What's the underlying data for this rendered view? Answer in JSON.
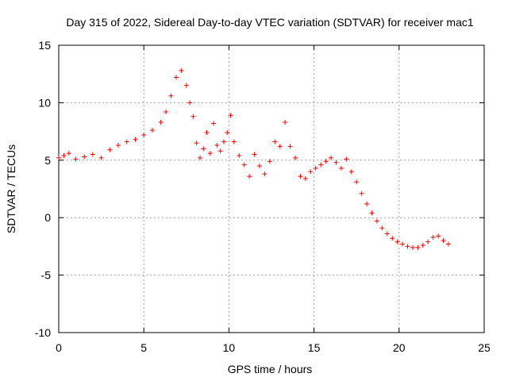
{
  "chart_data": {
    "type": "scatter",
    "title": "Day 315 of 2022, Sidereal Day-to-day VTEC variation (SDTVAR) for receiver mac1",
    "xlabel": "GPS time / hours",
    "ylabel": "SDTVAR / TECUs",
    "xlim": [
      0,
      25
    ],
    "ylim": [
      -10,
      15
    ],
    "xticks": [
      0,
      5,
      10,
      15,
      20,
      25
    ],
    "yticks": [
      -10,
      -5,
      0,
      5,
      10,
      15
    ],
    "xtick_labels": [
      "0",
      "5",
      "10",
      "15",
      "20",
      "25"
    ],
    "ytick_labels": [
      "-10",
      "-5",
      "0",
      "5",
      "10",
      "15"
    ],
    "grid": true,
    "marker": "+",
    "color": "#ff0000",
    "series": [
      {
        "name": "SDTVAR",
        "x": [
          0.0,
          0.3,
          0.6,
          1.0,
          1.5,
          2.0,
          2.5,
          3.0,
          3.5,
          4.0,
          4.5,
          5.0,
          5.5,
          6.0,
          6.3,
          6.6,
          6.9,
          7.2,
          7.5,
          7.7,
          7.9,
          8.1,
          8.3,
          8.5,
          8.7,
          8.9,
          9.1,
          9.3,
          9.5,
          9.7,
          9.9,
          10.1,
          10.3,
          10.6,
          10.9,
          11.2,
          11.5,
          11.8,
          12.1,
          12.4,
          12.7,
          13.0,
          13.3,
          13.6,
          13.9,
          14.2,
          14.5,
          14.8,
          15.1,
          15.4,
          15.7,
          16.0,
          16.3,
          16.6,
          16.9,
          17.2,
          17.5,
          17.8,
          18.1,
          18.4,
          18.7,
          19.0,
          19.3,
          19.6,
          19.9,
          20.2,
          20.5,
          20.8,
          21.1,
          21.4,
          21.7,
          22.0,
          22.3,
          22.6,
          22.9
        ],
        "y": [
          5.2,
          5.4,
          5.6,
          5.1,
          5.3,
          5.5,
          5.2,
          5.9,
          6.3,
          6.6,
          6.8,
          7.2,
          7.6,
          8.3,
          9.2,
          10.6,
          12.2,
          12.8,
          11.5,
          10.0,
          8.8,
          6.5,
          5.2,
          6.0,
          7.4,
          5.6,
          8.2,
          6.3,
          5.8,
          6.6,
          7.4,
          8.9,
          6.6,
          5.4,
          4.6,
          3.6,
          5.5,
          4.5,
          3.8,
          4.9,
          6.6,
          6.2,
          8.3,
          6.2,
          5.2,
          3.6,
          3.4,
          4.0,
          4.3,
          4.6,
          4.9,
          5.2,
          4.8,
          4.3,
          5.1,
          4.0,
          3.1,
          2.1,
          1.2,
          0.4,
          -0.3,
          -0.9,
          -1.4,
          -1.8,
          -2.1,
          -2.3,
          -2.5,
          -2.6,
          -2.6,
          -2.4,
          -2.1,
          -1.7,
          -1.6,
          -2.0,
          -2.3
        ]
      }
    ]
  }
}
